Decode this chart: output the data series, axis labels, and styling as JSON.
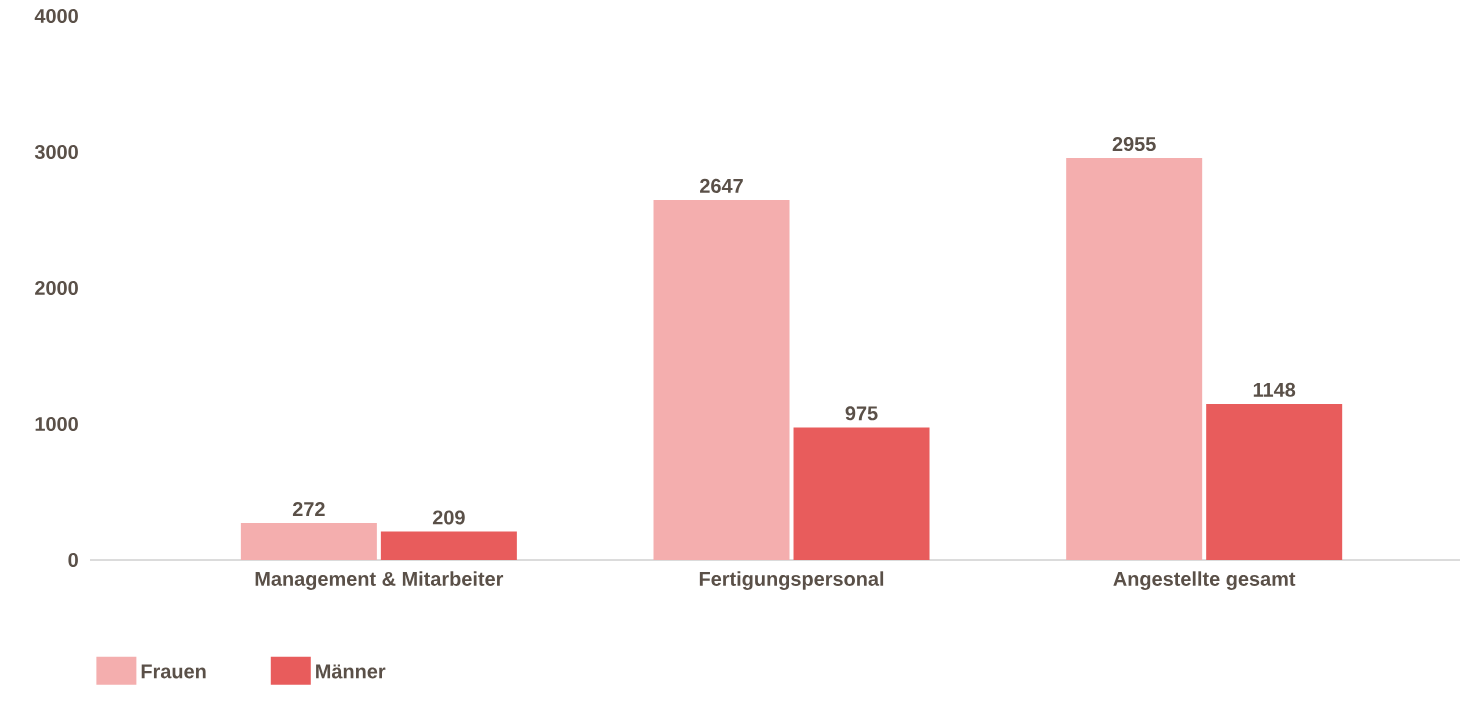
{
  "chart_data": {
    "type": "bar",
    "categories": [
      "Management & Mitarbeiter",
      "Fertigungspersonal",
      "Angestellte gesamt"
    ],
    "series": [
      {
        "name": "Frauen",
        "color": "#f4aeae",
        "values": [
          272,
          2647,
          2955
        ]
      },
      {
        "name": "Männer",
        "color": "#e85c5c",
        "values": [
          209,
          975,
          1148
        ]
      }
    ],
    "ylim": [
      0,
      4000
    ],
    "yticks": [
      0,
      1000,
      2000,
      3000,
      4000
    ],
    "data_labels": true,
    "legend": "bottom left",
    "grid": false
  }
}
